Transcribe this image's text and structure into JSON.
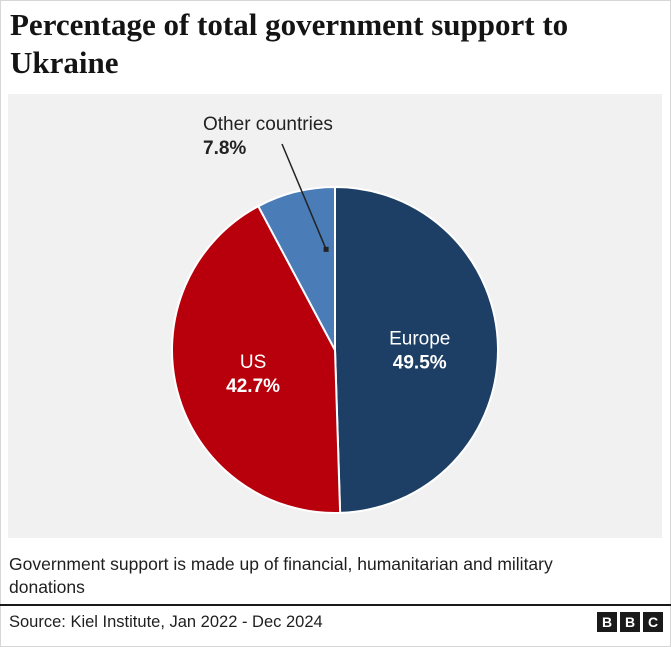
{
  "title": "Percentage of total government support to Ukraine",
  "note": "Government support is made up of financial, humanitarian and military donations",
  "source": "Source: Kiel Institute, Jan 2022 - Dec 2024",
  "logo": [
    "B",
    "B",
    "C"
  ],
  "chart_data": {
    "type": "pie",
    "title": "Percentage of total government support to Ukraine",
    "unit": "%",
    "slices": [
      {
        "label": "Europe",
        "value": 49.5,
        "display": "49.5%",
        "color": "#1d3f66"
      },
      {
        "label": "US",
        "value": 42.7,
        "display": "42.7%",
        "color": "#b8000d"
      },
      {
        "label": "Other countries",
        "value": 7.8,
        "display": "7.8%",
        "color": "#4a7cb7"
      }
    ]
  }
}
